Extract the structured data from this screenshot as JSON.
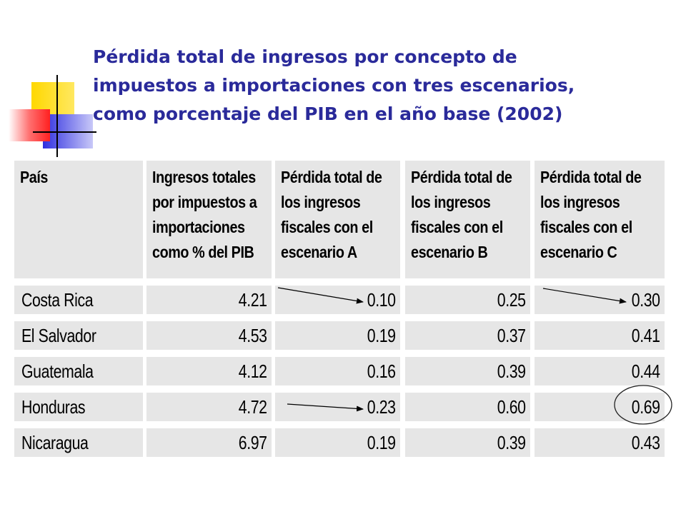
{
  "title": {
    "line1": "Pérdida total de ingresos por concepto de",
    "line2": "impuestos a importaciones con tres escenarios,",
    "line3": "como porcentaje del PIB en el año base (2002)"
  },
  "table": {
    "headers": [
      [
        "País"
      ],
      [
        "Ingresos totales",
        "por impuestos a",
        "importaciones",
        "como % del PIB"
      ],
      [
        "Pérdida total de",
        "los ingresos",
        "fiscales con el",
        "escenario A"
      ],
      [
        "Pérdida total de",
        "los ingresos",
        "fiscales con el",
        "escenario B"
      ],
      [
        "Pérdida total de",
        "los ingresos",
        "fiscales con el",
        "escenario C"
      ]
    ],
    "rows": [
      {
        "pais": "Costa Rica",
        "ingresos": "4.21",
        "a": "0.10",
        "b": "0.25",
        "c": "0.30"
      },
      {
        "pais": "El Salvador",
        "ingresos": "4.53",
        "a": "0.19",
        "b": "0.37",
        "c": "0.41"
      },
      {
        "pais": "Guatemala",
        "ingresos": "4.12",
        "a": "0.16",
        "b": "0.39",
        "c": "0.44"
      },
      {
        "pais": "Honduras",
        "ingresos": "4.72",
        "a": "0.23",
        "b": "0.60",
        "c": "0.69"
      },
      {
        "pais": "Nicaragua",
        "ingresos": "6.97",
        "a": "0.19",
        "b": "0.39",
        "c": "0.43"
      }
    ]
  },
  "colors": {
    "title": "#2a2a9a",
    "cell_background": "#e6e6e6",
    "logo_yellow": "#ffd800",
    "logo_blue": "#3030e0",
    "logo_red": "#ff3030"
  },
  "annotations": {
    "arrows": [
      "Costa Rica: escenario A",
      "Costa Rica: escenario C",
      "Honduras: escenario A"
    ],
    "circled": "Honduras: escenario C"
  }
}
